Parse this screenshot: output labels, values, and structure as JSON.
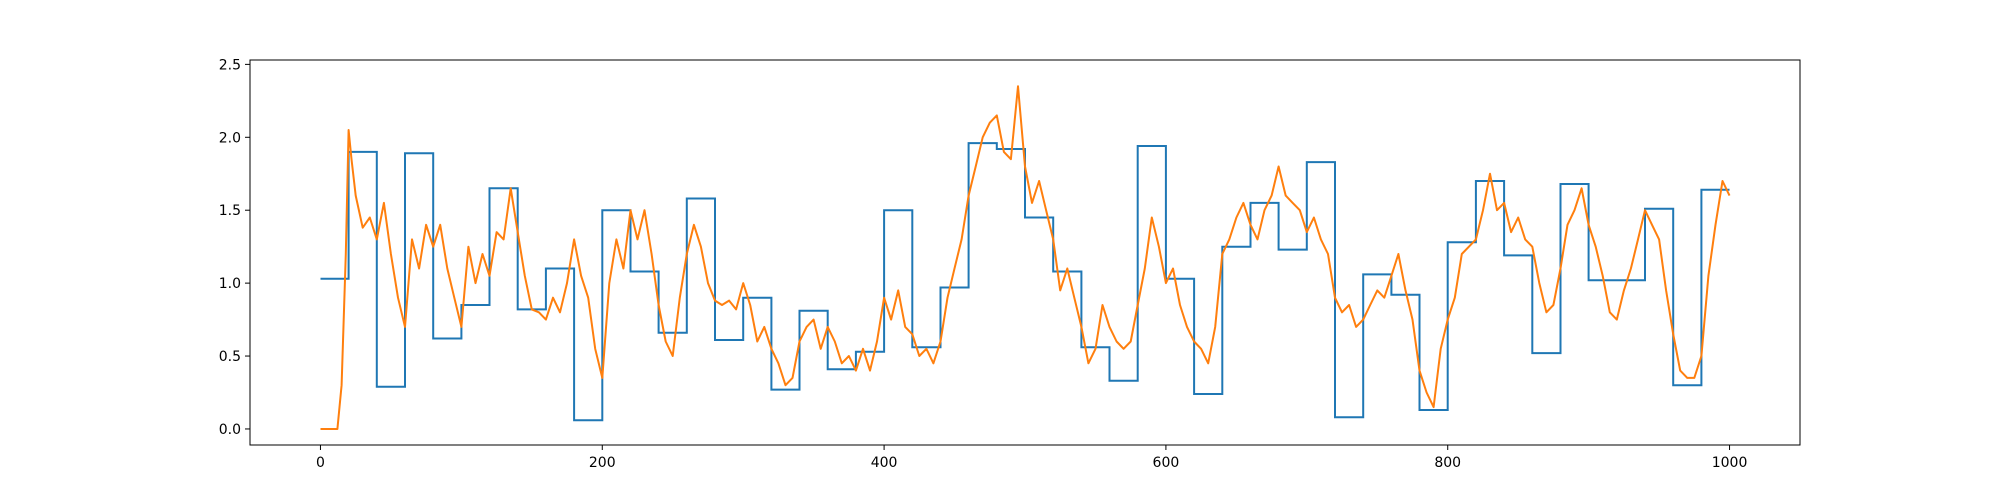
{
  "chart_data": {
    "type": "line",
    "title": "",
    "xlabel": "",
    "ylabel": "",
    "xlim": [
      -50,
      1050
    ],
    "ylim": [
      -0.11,
      2.53
    ],
    "xticks": [
      0,
      200,
      400,
      600,
      800,
      1000
    ],
    "yticks": [
      0.0,
      0.5,
      1.0,
      1.5,
      2.0,
      2.5
    ],
    "xtick_labels": [
      "0",
      "200",
      "400",
      "600",
      "800",
      "1000"
    ],
    "ytick_labels": [
      "0.0",
      "0.5",
      "1.0",
      "1.5",
      "2.0",
      "2.5"
    ],
    "grid": false,
    "legend": "none",
    "series": [
      {
        "color": "#1f77b4",
        "style": "step",
        "values": [
          1.03,
          1.9,
          0.29,
          1.89,
          0.62,
          0.85,
          1.65,
          0.82,
          1.1,
          0.06,
          1.5,
          1.08,
          0.66,
          1.58,
          0.61,
          0.9,
          0.27,
          0.81,
          0.41,
          0.53,
          1.5,
          0.56,
          0.97,
          1.96,
          1.92,
          1.45,
          1.08,
          0.56,
          0.33,
          1.94,
          1.03,
          0.24,
          1.25,
          1.55,
          1.23,
          1.83,
          0.08,
          1.06,
          0.92,
          0.13,
          1.28,
          1.7,
          1.19,
          0.52,
          1.68,
          1.02,
          1.02,
          1.51,
          0.3,
          1.64
        ]
      },
      {
        "color": "#ff7f0e",
        "style": "line",
        "x": [
          0,
          12,
          15,
          18,
          20,
          22,
          25,
          30,
          35,
          40,
          45,
          50,
          55,
          60,
          65,
          70,
          75,
          80,
          85,
          90,
          95,
          100,
          105,
          110,
          115,
          120,
          125,
          130,
          135,
          140,
          145,
          150,
          155,
          160,
          165,
          170,
          175,
          180,
          185,
          190,
          195,
          200,
          205,
          210,
          215,
          220,
          225,
          230,
          235,
          240,
          245,
          250,
          255,
          260,
          265,
          270,
          275,
          280,
          285,
          290,
          295,
          300,
          305,
          310,
          315,
          320,
          325,
          330,
          335,
          340,
          345,
          350,
          355,
          360,
          365,
          370,
          375,
          380,
          385,
          390,
          395,
          400,
          405,
          410,
          415,
          420,
          425,
          430,
          435,
          440,
          445,
          450,
          455,
          460,
          465,
          470,
          475,
          480,
          485,
          490,
          495,
          500,
          505,
          510,
          515,
          520,
          525,
          530,
          535,
          540,
          545,
          550,
          555,
          560,
          565,
          570,
          575,
          580,
          585,
          590,
          595,
          600,
          605,
          610,
          615,
          620,
          625,
          630,
          635,
          640,
          645,
          650,
          655,
          660,
          665,
          670,
          675,
          680,
          685,
          690,
          695,
          700,
          705,
          710,
          715,
          720,
          725,
          730,
          735,
          740,
          745,
          750,
          755,
          760,
          765,
          770,
          775,
          780,
          785,
          790,
          795,
          800,
          805,
          810,
          815,
          820,
          825,
          830,
          835,
          840,
          845,
          850,
          855,
          860,
          865,
          870,
          875,
          880,
          885,
          890,
          895,
          900,
          905,
          910,
          915,
          920,
          925,
          930,
          935,
          940,
          945,
          950,
          955,
          960,
          965,
          970,
          975,
          980,
          985,
          990,
          995,
          1000
        ],
        "values": [
          0.0,
          0.0,
          0.3,
          1.2,
          2.05,
          1.85,
          1.6,
          1.38,
          1.45,
          1.3,
          1.55,
          1.2,
          0.9,
          0.7,
          1.3,
          1.1,
          1.4,
          1.25,
          1.4,
          1.1,
          0.9,
          0.7,
          1.25,
          1.0,
          1.2,
          1.05,
          1.35,
          1.3,
          1.65,
          1.35,
          1.05,
          0.82,
          0.8,
          0.75,
          0.9,
          0.8,
          1.0,
          1.3,
          1.05,
          0.9,
          0.55,
          0.35,
          1.0,
          1.3,
          1.1,
          1.5,
          1.3,
          1.5,
          1.2,
          0.85,
          0.6,
          0.5,
          0.9,
          1.2,
          1.4,
          1.25,
          1.0,
          0.88,
          0.85,
          0.88,
          0.82,
          1.0,
          0.85,
          0.6,
          0.7,
          0.55,
          0.45,
          0.3,
          0.35,
          0.6,
          0.7,
          0.75,
          0.55,
          0.7,
          0.6,
          0.45,
          0.5,
          0.4,
          0.55,
          0.4,
          0.6,
          0.9,
          0.75,
          0.95,
          0.7,
          0.65,
          0.5,
          0.55,
          0.45,
          0.6,
          0.9,
          1.1,
          1.3,
          1.6,
          1.8,
          2.0,
          2.1,
          2.15,
          1.9,
          1.85,
          2.35,
          1.8,
          1.55,
          1.7,
          1.5,
          1.3,
          0.95,
          1.1,
          0.9,
          0.7,
          0.45,
          0.55,
          0.85,
          0.7,
          0.6,
          0.55,
          0.6,
          0.85,
          1.1,
          1.45,
          1.25,
          1.0,
          1.1,
          0.85,
          0.7,
          0.6,
          0.55,
          0.45,
          0.7,
          1.2,
          1.3,
          1.45,
          1.55,
          1.4,
          1.3,
          1.5,
          1.6,
          1.8,
          1.6,
          1.55,
          1.5,
          1.35,
          1.45,
          1.3,
          1.2,
          0.9,
          0.8,
          0.85,
          0.7,
          0.75,
          0.85,
          0.95,
          0.9,
          1.05,
          1.2,
          0.95,
          0.75,
          0.4,
          0.25,
          0.15,
          0.55,
          0.75,
          0.9,
          1.2,
          1.25,
          1.3,
          1.5,
          1.75,
          1.5,
          1.55,
          1.35,
          1.45,
          1.3,
          1.25,
          1.0,
          0.8,
          0.85,
          1.1,
          1.4,
          1.5,
          1.65,
          1.4,
          1.25,
          1.05,
          0.8,
          0.75,
          0.95,
          1.1,
          1.3,
          1.5,
          1.4,
          1.3,
          0.95,
          0.65,
          0.4,
          0.35,
          0.35,
          0.5,
          1.05,
          1.4,
          1.7,
          1.6
        ]
      }
    ]
  }
}
